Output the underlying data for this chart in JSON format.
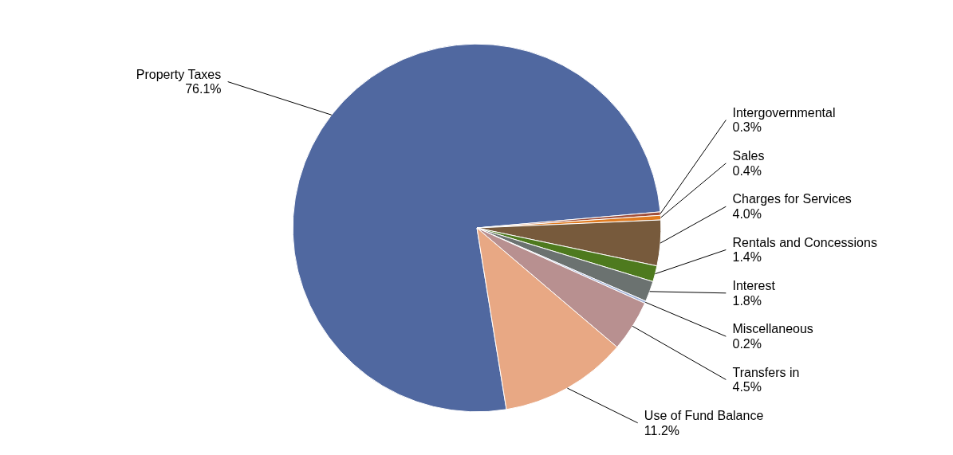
{
  "chart_data": {
    "type": "pie",
    "categories": [
      "Property Taxes",
      "Intergovernmental",
      "Sales",
      "Charges for Services",
      "Rentals and Concessions",
      "Interest",
      "Miscellaneous",
      "Transfers in",
      "Use of Fund Balance"
    ],
    "values": [
      76.1,
      0.3,
      0.4,
      4.0,
      1.4,
      1.8,
      0.2,
      4.5,
      11.2
    ],
    "value_labels": [
      "76.1%",
      "0.3%",
      "0.4%",
      "4.0%",
      "1.4%",
      "1.8%",
      "0.2%",
      "4.5%",
      "11.2%"
    ],
    "colors": [
      "#5068a0",
      "#a0503c",
      "#e07b20",
      "#775a3c",
      "#4e7a1e",
      "#6b7270",
      "#9fb0d8",
      "#b89090",
      "#e8a884"
    ]
  }
}
